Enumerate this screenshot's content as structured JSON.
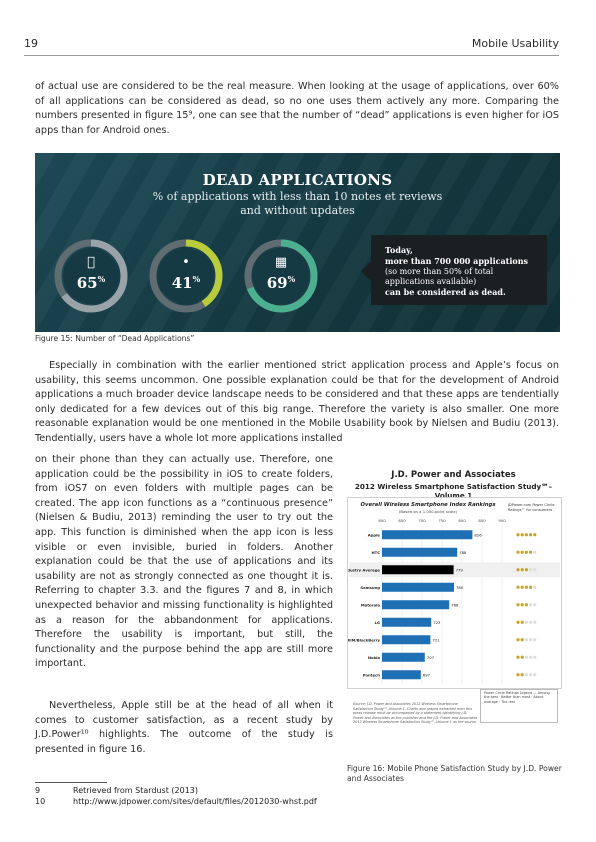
{
  "header": {
    "page_number": "19",
    "title": "Mobile Usability"
  },
  "body": {
    "p1": "of actual use are considered to be the real measure. When looking at the usage of applications, over 60% of all applications can be considered as dead, so no one uses them actively any more. Comparing the numbers presented in figure 15⁹, one can see that the number of “dead” applications is even higher for iOS apps than for Android ones.",
    "p2": "Especially in combination with the earlier mentioned strict application process and Apple’s focus on usability, this seems uncommon. One possible explanation could be that for the development of Android applications a much broader device landscape needs to be considered and that these apps are tendentially only dedicated for a few devices out of this big range. Therefore the variety is also smaller. One more reasonable explanation would be one mentioned in the Mobile Usability book by Nielsen and Budiu (2013). Tendentially, users have a whole lot more applications installed",
    "p2b": "on their phone than they can actually use. Therefore, one application could be the possibility in iOS to create folders, from iOS7 on even folders with multiple pages can be created. The app icon functions as a “continuous presence” (Nielsen & Budiu, 2013) reminding the user to try out the app. This function is diminished when the app icon is less visible or even invisible, buried in folders. Another explanation could be that the use of applications and its usability are not as strongly connected as one thought it is. Referring to chapter 3.3. and the figures 7 and 8, in which unexpected behavior and missing functionality is highlighted as a reason for the abbandonment for applications. Therefore the usability is important, but still, the functionality and the purpose behind the app are still more important.",
    "p3": "Nevertheless, Apple still be at the head of all when it comes to customer satisfaction, as a recent study by J.D.Power¹⁰ highlights. The outcome of the study is presented in figure 16."
  },
  "figure15": {
    "title": "DEAD APPLICATIONS",
    "subtitle_line1": "% of applications with less than 10 notes et reviews",
    "subtitle_line2": "and without updates",
    "rings": [
      {
        "platform": "iOS",
        "icon": "apple-icon",
        "glyph": "",
        "percent": 65,
        "label": "65",
        "color": "#9aa3a8",
        "track": "#5f6c72"
      },
      {
        "platform": "Android",
        "icon": "android-icon",
        "glyph": "•",
        "percent": 41,
        "label": "41",
        "color": "#b8cc3c",
        "track": "#5f6c72"
      },
      {
        "platform": "Windows",
        "icon": "windows-icon",
        "glyph": "▦",
        "percent": 69,
        "label": "69",
        "color": "#4caf8f",
        "track": "#5f6c72"
      }
    ],
    "percent_sign": "%",
    "callout_line1": "Today,",
    "callout_line2": "more than 700 000 applications",
    "callout_line3": "(so more than 50% of total",
    "callout_line4": "applications available)",
    "callout_line5": "can be considered as dead.",
    "caption": "Figure 15: Number of “Dead Applications”"
  },
  "figure16": {
    "title_line1": "J.D. Power and Associates",
    "title_line2": "2012 Wireless Smartphone Satisfaction Study℠–Volume 1",
    "chart_title": "Overall Wireless Smartphone Index Rankings",
    "chart_subtitle": "(Based on a 1,000-point scale)",
    "legend_header": "JDPower.com Power Circle Ratings™ for consumers",
    "legend_box": "Power Circle Ratings Legend — Among the best · Better than most · About average · The rest",
    "notes": "Source: J.D. Power and Associates 2012 Wireless Smartphone Satisfaction Study℠–Volume 1. Charts and graphs extracted from this press release must be accompanied by a statement identifying J.D. Power and Associates as the publisher and the J.D. Power and Associates 2012 Wireless Smartphone Satisfaction Study℠–Volume 1 as the source.",
    "caption": "Figure 16: Mobile Phone Satisfaction Study by J.D. Power and Associates",
    "accent": "#1f6fb5"
  },
  "chart_data": {
    "type": "bar",
    "title": "Overall Wireless Smartphone Index Rankings",
    "categories": [
      "Apple",
      "HTC",
      "Industry Average",
      "Samsung",
      "Motorola",
      "LG",
      "RIM/BlackBerry",
      "Nokia",
      "Pantech"
    ],
    "values": [
      826,
      788,
      779,
      780,
      768,
      723,
      721,
      707,
      697
    ],
    "value_labels": [
      "826",
      "788",
      "779",
      "780",
      "768",
      "723",
      "721",
      "707",
      "697"
    ],
    "ratings": [
      "5",
      "4",
      "3",
      "4",
      "3",
      "2",
      "2",
      "2",
      "2"
    ],
    "ticks": [
      600,
      650,
      700,
      750,
      800,
      850,
      900
    ],
    "xlim": [
      600,
      900
    ],
    "colors": {
      "bar": "#1f6fb5",
      "average": "#000000"
    }
  },
  "footnotes": [
    {
      "num": "9",
      "text": "Retrieved from Stardust (2013)"
    },
    {
      "num": "10",
      "text": "http://www.jdpower.com/sites/default/files/2012030-whst.pdf"
    }
  ]
}
